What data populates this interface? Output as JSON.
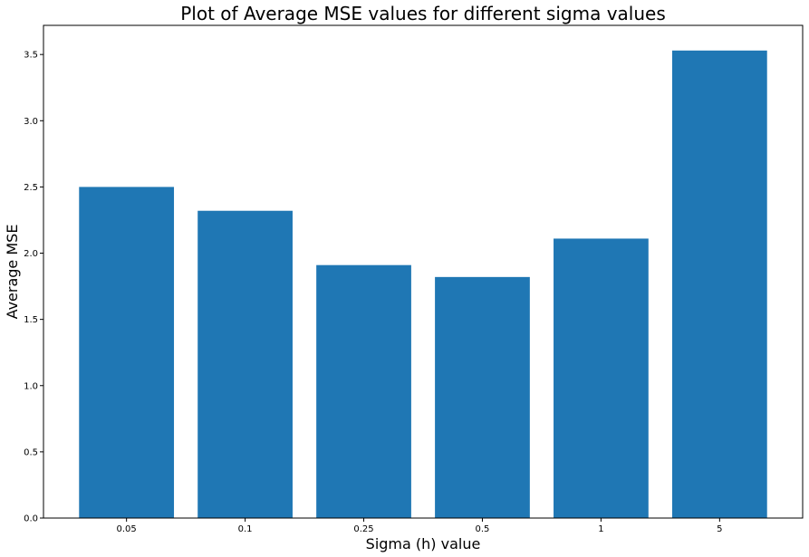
{
  "chart_data": {
    "type": "bar",
    "title": "Plot of Average MSE values for different sigma values",
    "xlabel": "Sigma (h) value",
    "ylabel": "Average MSE",
    "categories": [
      "0.05",
      "0.1",
      "0.25",
      "0.5",
      "1",
      "5"
    ],
    "values": [
      2.5,
      2.32,
      1.91,
      1.82,
      2.11,
      3.53
    ],
    "ylim": [
      0,
      3.72
    ],
    "yticks": [
      0.0,
      0.5,
      1.0,
      1.5,
      2.0,
      2.5,
      3.0,
      3.5
    ],
    "ytick_labels": [
      "0.0",
      "0.5",
      "1.0",
      "1.5",
      "2.0",
      "2.5",
      "3.0",
      "3.5"
    ],
    "grid": false,
    "bar_color": "#1f77b4"
  }
}
